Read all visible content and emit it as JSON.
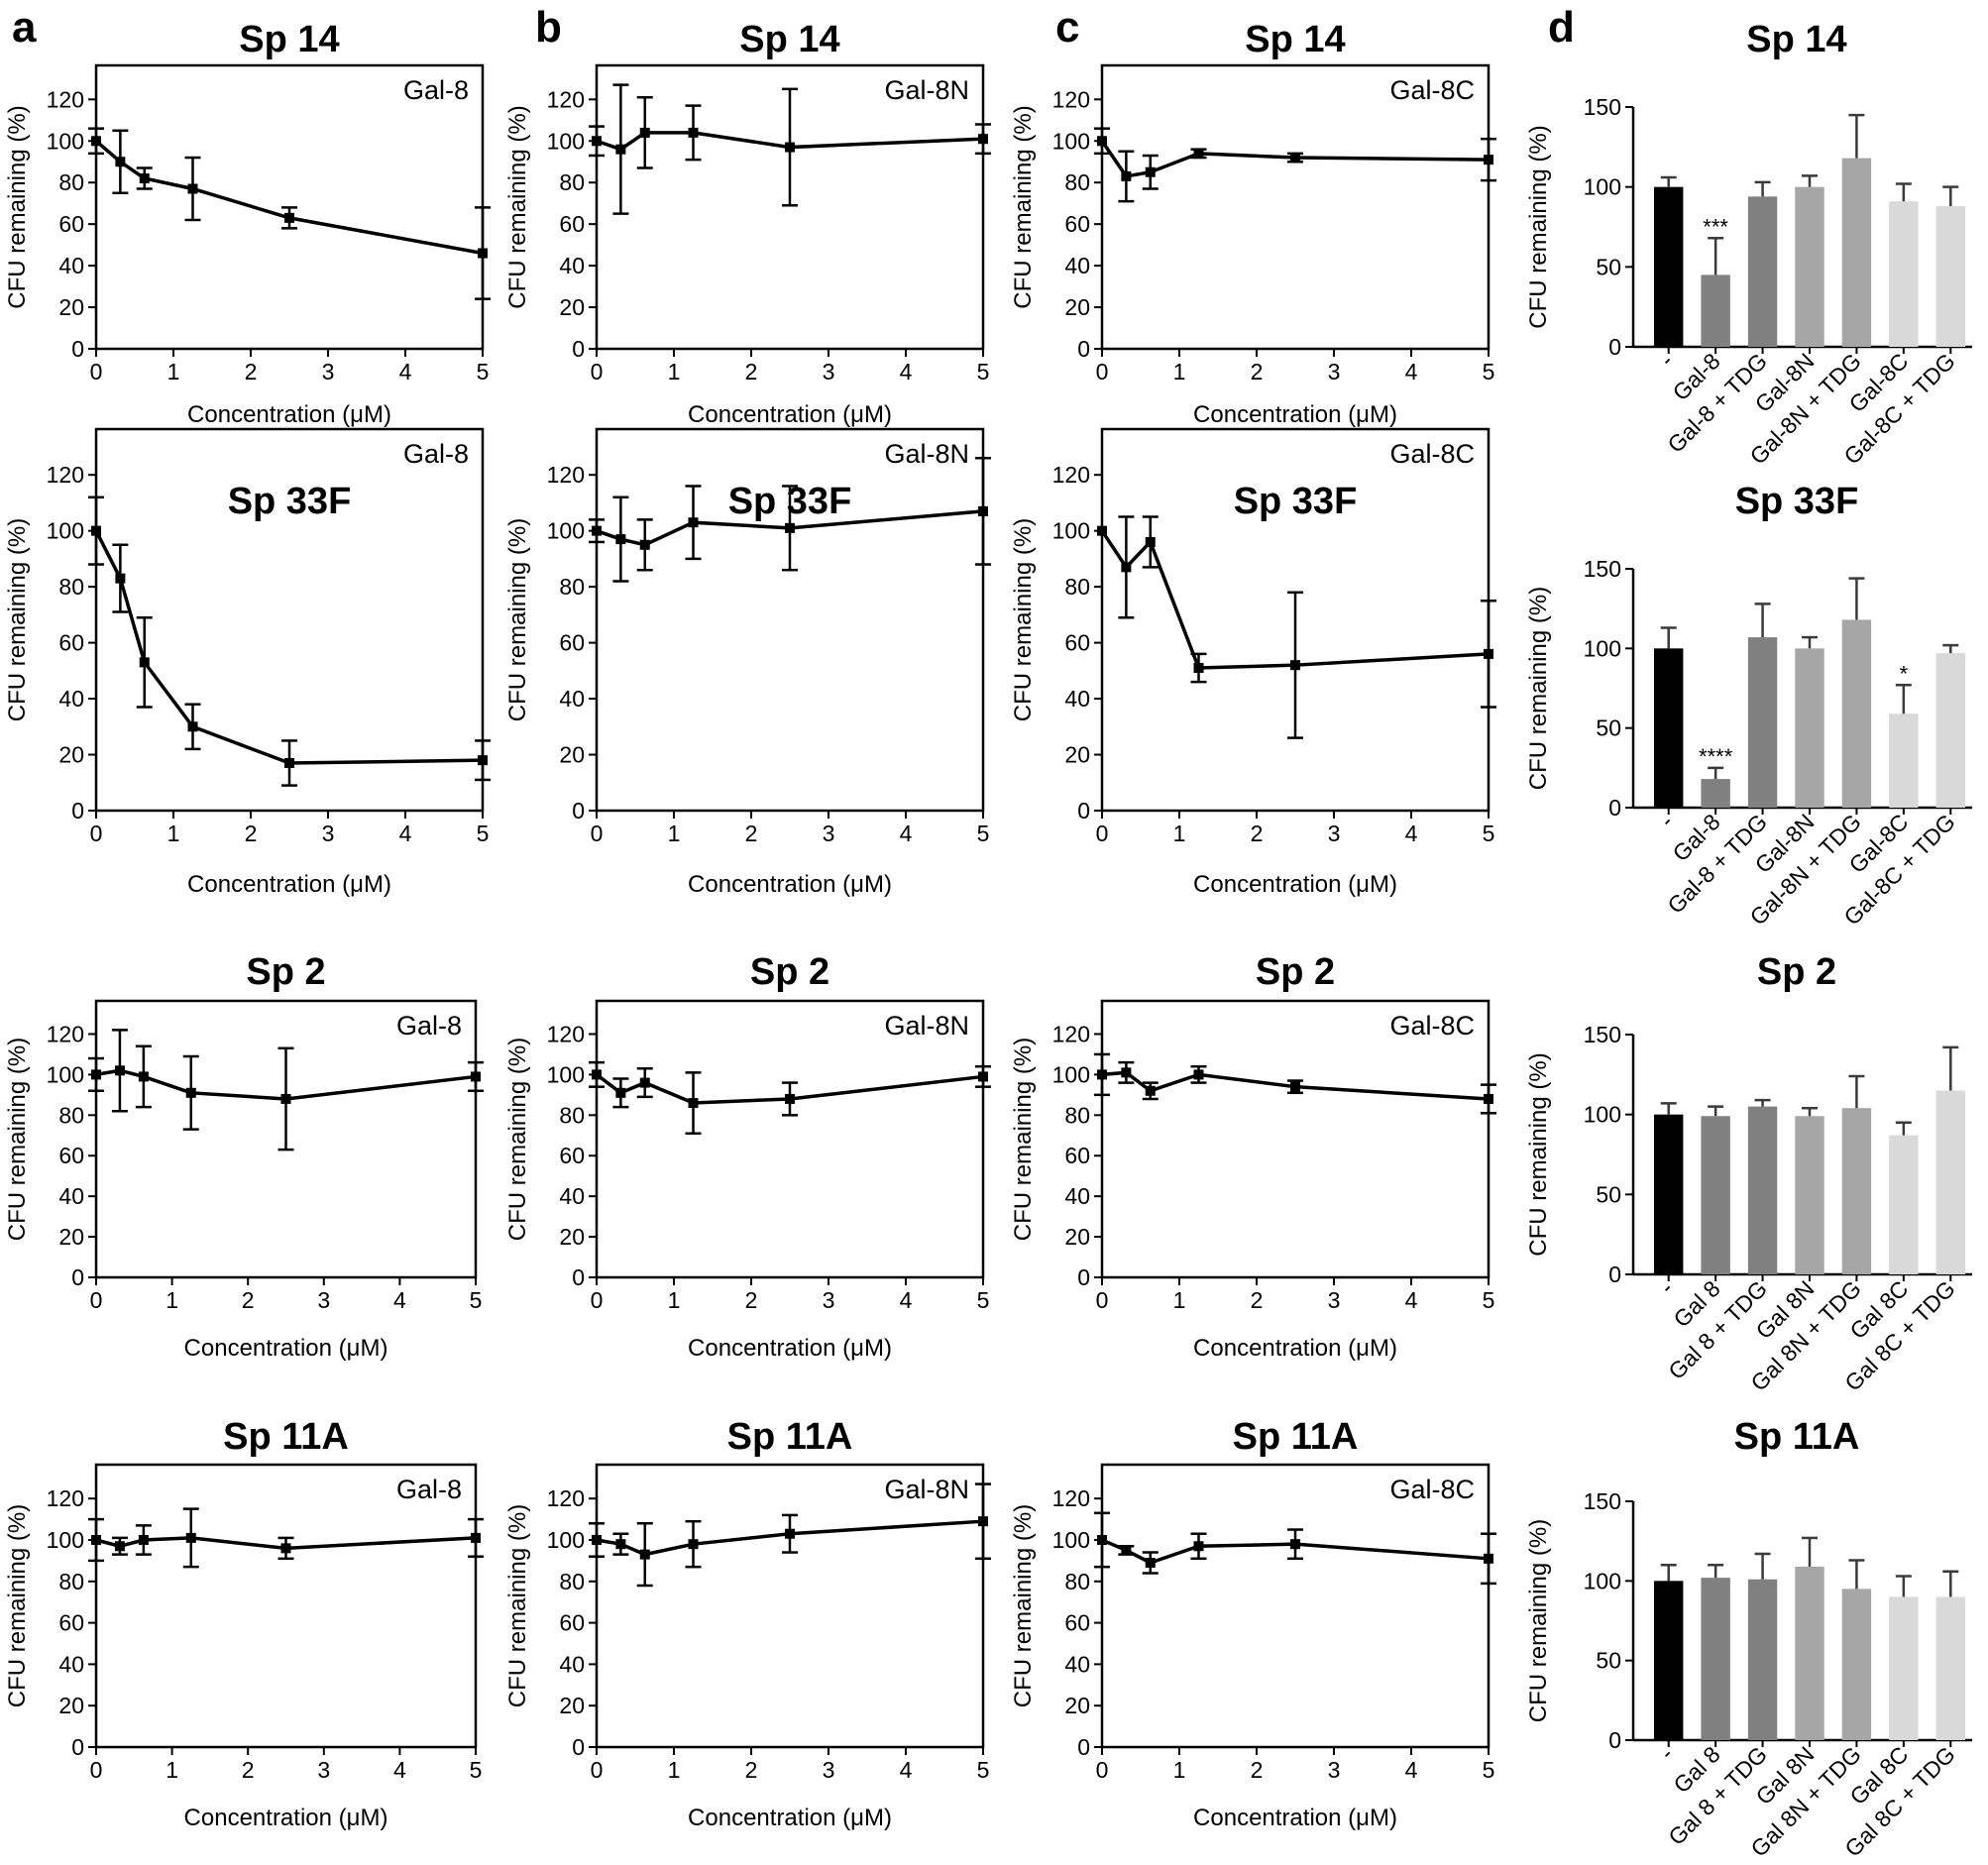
{
  "panel_letters": [
    "a",
    "b",
    "c",
    "d"
  ],
  "chart_data": [
    {
      "type": "line",
      "title": "Sp 14",
      "label": "Gal-8",
      "xlabel": "Concentration (μM)",
      "ylabel": "CFU remaining (%)",
      "xlim": [
        0,
        5
      ],
      "ylim": [
        0,
        140
      ],
      "xticks": [
        0,
        1,
        2,
        3,
        4,
        5
      ],
      "yticks": [
        0,
        20,
        40,
        60,
        80,
        100,
        120
      ],
      "x": [
        0,
        0.3125,
        0.625,
        1.25,
        2.5,
        5
      ],
      "values": [
        100,
        90,
        82,
        77,
        63,
        46
      ],
      "errors": [
        6,
        15,
        5,
        15,
        5,
        22
      ]
    },
    {
      "type": "line",
      "title": "Sp 14",
      "label": "Gal-8N",
      "xlabel": "Concentration (μM)",
      "ylabel": "CFU remaining (%)",
      "xlim": [
        0,
        5
      ],
      "ylim": [
        0,
        140
      ],
      "xticks": [
        0,
        1,
        2,
        3,
        4,
        5
      ],
      "yticks": [
        0,
        20,
        40,
        60,
        80,
        100,
        120
      ],
      "x": [
        0,
        0.3125,
        0.625,
        1.25,
        2.5,
        5
      ],
      "values": [
        100,
        96,
        104,
        104,
        97,
        101
      ],
      "errors": [
        7,
        31,
        17,
        13,
        28,
        7
      ]
    },
    {
      "type": "line",
      "title": "Sp 14",
      "label": "Gal-8C",
      "xlabel": "Concentration (μM)",
      "ylabel": "CFU remaining (%)",
      "xlim": [
        0,
        5
      ],
      "ylim": [
        0,
        140
      ],
      "xticks": [
        0,
        1,
        2,
        3,
        4,
        5
      ],
      "yticks": [
        0,
        20,
        40,
        60,
        80,
        100,
        120
      ],
      "x": [
        0,
        0.3125,
        0.625,
        1.25,
        2.5,
        5
      ],
      "values": [
        100,
        83,
        85,
        94,
        92,
        91
      ],
      "errors": [
        6,
        12,
        8,
        2,
        2,
        10
      ]
    },
    {
      "type": "bar",
      "title": "Sp 14",
      "ylabel": "CFU remaining (%)",
      "ylim": [
        0,
        150
      ],
      "yticks": [
        0,
        50,
        100,
        150
      ],
      "categories": [
        "-",
        "Gal-8",
        "Gal-8 + TDG",
        "Gal-8N",
        "Gal-8N + TDG",
        "Gal-8C",
        "Gal-8C + TDG"
      ],
      "values": [
        100,
        45,
        94,
        100,
        118,
        91,
        88
      ],
      "errors": [
        6,
        23,
        9,
        7,
        27,
        11,
        12
      ],
      "significance": [
        "",
        "***",
        "",
        "",
        "",
        "",
        ""
      ],
      "colors": [
        "#000000",
        "#808080",
        "#808080",
        "#a6a6a6",
        "#a6a6a6",
        "#d9d9d9",
        "#d9d9d9"
      ]
    },
    {
      "type": "line",
      "title": "Sp 33F",
      "label": "Gal-8",
      "xlabel": "Concentration (μM)",
      "ylabel": "CFU remaining (%)",
      "xlim": [
        0,
        5
      ],
      "ylim": [
        0,
        140
      ],
      "xticks": [
        0,
        1,
        2,
        3,
        4,
        5
      ],
      "yticks": [
        0,
        20,
        40,
        60,
        80,
        100,
        120
      ],
      "x": [
        0,
        0.3125,
        0.625,
        1.25,
        2.5,
        5
      ],
      "values": [
        100,
        83,
        53,
        30,
        17,
        18
      ],
      "errors": [
        12,
        12,
        16,
        8,
        8,
        7
      ]
    },
    {
      "type": "line",
      "title": "Sp 33F",
      "label": "Gal-8N",
      "xlabel": "Concentration (μM)",
      "ylabel": "CFU remaining (%)",
      "xlim": [
        0,
        5
      ],
      "ylim": [
        0,
        140
      ],
      "xticks": [
        0,
        1,
        2,
        3,
        4,
        5
      ],
      "yticks": [
        0,
        20,
        40,
        60,
        80,
        100,
        120
      ],
      "x": [
        0,
        0.3125,
        0.625,
        1.25,
        2.5,
        5
      ],
      "values": [
        100,
        97,
        95,
        103,
        101,
        107
      ],
      "errors": [
        4,
        15,
        9,
        13,
        15,
        19
      ]
    },
    {
      "type": "line",
      "title": "Sp 33F",
      "label": "Gal-8C",
      "xlabel": "Concentration (μM)",
      "ylabel": "CFU remaining (%)",
      "xlim": [
        0,
        5
      ],
      "ylim": [
        0,
        140
      ],
      "xticks": [
        0,
        1,
        2,
        3,
        4,
        5
      ],
      "yticks": [
        0,
        20,
        40,
        60,
        80,
        100,
        120
      ],
      "x": [
        0,
        0.3125,
        0.625,
        1.25,
        2.5,
        5
      ],
      "values": [
        100,
        87,
        96,
        51,
        52,
        56
      ],
      "errors": [
        0,
        18,
        9,
        5,
        26,
        19
      ]
    },
    {
      "type": "bar",
      "title": "Sp 33F",
      "ylabel": "CFU remaining (%)",
      "ylim": [
        0,
        150
      ],
      "yticks": [
        0,
        50,
        100,
        150
      ],
      "categories": [
        "-",
        "Gal-8",
        "Gal-8 + TDG",
        "Gal-8N",
        "Gal-8N + TDG",
        "Gal-8C",
        "Gal-8C + TDG"
      ],
      "values": [
        100,
        18,
        107,
        100,
        118,
        59,
        97
      ],
      "errors": [
        13,
        7,
        21,
        7,
        26,
        18,
        5
      ],
      "significance": [
        "",
        "****",
        "",
        "",
        "",
        "*",
        ""
      ],
      "colors": [
        "#000000",
        "#808080",
        "#808080",
        "#a6a6a6",
        "#a6a6a6",
        "#d9d9d9",
        "#d9d9d9"
      ]
    },
    {
      "type": "line",
      "title": "Sp 2",
      "label": "Gal-8",
      "xlabel": "Concentration (μM)",
      "ylabel": "CFU remaining (%)",
      "xlim": [
        0,
        5
      ],
      "ylim": [
        0,
        140
      ],
      "xticks": [
        0,
        1,
        2,
        3,
        4,
        5
      ],
      "yticks": [
        0,
        20,
        40,
        60,
        80,
        100,
        120
      ],
      "x": [
        0,
        0.3125,
        0.625,
        1.25,
        2.5,
        5
      ],
      "values": [
        100,
        102,
        99,
        91,
        88,
        99
      ],
      "errors": [
        8,
        20,
        15,
        18,
        25,
        7
      ]
    },
    {
      "type": "line",
      "title": "Sp 2",
      "label": "Gal-8N",
      "xlabel": "Concentration (μM)",
      "ylabel": "CFU remaining (%)",
      "xlim": [
        0,
        5
      ],
      "ylim": [
        0,
        140
      ],
      "xticks": [
        0,
        1,
        2,
        3,
        4,
        5
      ],
      "yticks": [
        0,
        20,
        40,
        60,
        80,
        100,
        120
      ],
      "x": [
        0,
        0.3125,
        0.625,
        1.25,
        2.5,
        5
      ],
      "values": [
        100,
        91,
        96,
        86,
        88,
        99
      ],
      "errors": [
        6,
        7,
        7,
        15,
        8,
        5
      ]
    },
    {
      "type": "line",
      "title": "Sp 2",
      "label": "Gal-8C",
      "xlabel": "Concentration (μM)",
      "ylabel": "CFU remaining (%)",
      "xlim": [
        0,
        5
      ],
      "ylim": [
        0,
        140
      ],
      "xticks": [
        0,
        1,
        2,
        3,
        4,
        5
      ],
      "yticks": [
        0,
        20,
        40,
        60,
        80,
        100,
        120
      ],
      "x": [
        0,
        0.3125,
        0.625,
        1.25,
        2.5,
        5
      ],
      "values": [
        100,
        101,
        92,
        100,
        94,
        88
      ],
      "errors": [
        10,
        5,
        4,
        4,
        3,
        7
      ]
    },
    {
      "type": "bar",
      "title": "Sp 2",
      "ylabel": "CFU remaining (%)",
      "ylim": [
        0,
        150
      ],
      "yticks": [
        0,
        50,
        100,
        150
      ],
      "categories": [
        "-",
        "Gal 8",
        "Gal 8 + TDG",
        "Gal 8N",
        "Gal 8N + TDG",
        "Gal 8C",
        "Gal 8C + TDG"
      ],
      "values": [
        100,
        99,
        105,
        99,
        104,
        87,
        115
      ],
      "errors": [
        7,
        6,
        4,
        5,
        20,
        8,
        27
      ],
      "significance": [
        "",
        "",
        "",
        "",
        "",
        "",
        ""
      ],
      "colors": [
        "#000000",
        "#808080",
        "#808080",
        "#a6a6a6",
        "#a6a6a6",
        "#d9d9d9",
        "#d9d9d9"
      ]
    },
    {
      "type": "line",
      "title": "Sp 11A",
      "label": "Gal-8",
      "xlabel": "Concentration (μM)",
      "ylabel": "CFU remaining (%)",
      "xlim": [
        0,
        5
      ],
      "ylim": [
        0,
        140
      ],
      "xticks": [
        0,
        1,
        2,
        3,
        4,
        5
      ],
      "yticks": [
        0,
        20,
        40,
        60,
        80,
        100,
        120
      ],
      "x": [
        0,
        0.3125,
        0.625,
        1.25,
        2.5,
        5
      ],
      "values": [
        100,
        97,
        100,
        101,
        96,
        101
      ],
      "errors": [
        10,
        4,
        7,
        14,
        5,
        9
      ]
    },
    {
      "type": "line",
      "title": "Sp 11A",
      "label": "Gal-8N",
      "xlabel": "Concentration (μM)",
      "ylabel": "CFU remaining (%)",
      "xlim": [
        0,
        5
      ],
      "ylim": [
        0,
        140
      ],
      "xticks": [
        0,
        1,
        2,
        3,
        4,
        5
      ],
      "yticks": [
        0,
        20,
        40,
        60,
        80,
        100,
        120
      ],
      "x": [
        0,
        0.3125,
        0.625,
        1.25,
        2.5,
        5
      ],
      "values": [
        100,
        98,
        93,
        98,
        103,
        109
      ],
      "errors": [
        8,
        5,
        15,
        11,
        9,
        18
      ]
    },
    {
      "type": "line",
      "title": "Sp 11A",
      "label": "Gal-8C",
      "xlabel": "Concentration (μM)",
      "ylabel": "CFU remaining (%)",
      "xlim": [
        0,
        5
      ],
      "ylim": [
        0,
        140
      ],
      "xticks": [
        0,
        1,
        2,
        3,
        4,
        5
      ],
      "yticks": [
        0,
        20,
        40,
        60,
        80,
        100,
        120
      ],
      "x": [
        0,
        0.3125,
        0.625,
        1.25,
        2.5,
        5
      ],
      "values": [
        100,
        95,
        89,
        97,
        98,
        91
      ],
      "errors": [
        13,
        2,
        5,
        6,
        7,
        12
      ]
    },
    {
      "type": "bar",
      "title": "Sp 11A",
      "ylabel": "CFU remaining (%)",
      "ylim": [
        0,
        150
      ],
      "yticks": [
        0,
        50,
        100,
        150
      ],
      "categories": [
        "-",
        "Gal 8",
        "Gal 8 + TDG",
        "Gal 8N",
        "Gal 8N + TDG",
        "Gal 8C",
        "Gal 8C + TDG"
      ],
      "values": [
        100,
        102,
        101,
        109,
        95,
        90,
        90
      ],
      "errors": [
        10,
        8,
        16,
        18,
        18,
        13,
        16
      ],
      "significance": [
        "",
        "",
        "",
        "",
        "",
        "",
        ""
      ],
      "colors": [
        "#000000",
        "#808080",
        "#808080",
        "#a6a6a6",
        "#a6a6a6",
        "#d9d9d9",
        "#d9d9d9"
      ]
    }
  ]
}
